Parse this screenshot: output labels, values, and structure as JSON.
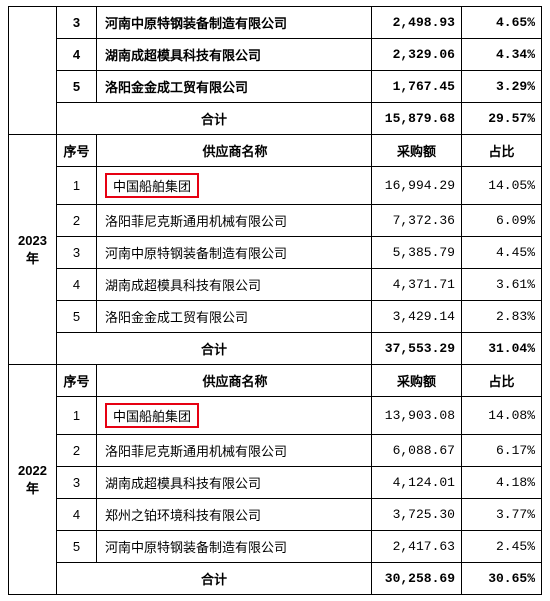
{
  "headers": {
    "seq": "序号",
    "supplier": "供应商名称",
    "amount": "采购额",
    "pct": "占比",
    "sum": "合计"
  },
  "topSection": {
    "rows": [
      {
        "seq": "3",
        "name": "河南中原特钢装备制造有限公司",
        "amount": "2,498.93",
        "pct": "4.65%"
      },
      {
        "seq": "4",
        "name": "湖南成超模具科技有限公司",
        "amount": "2,329.06",
        "pct": "4.34%"
      },
      {
        "seq": "5",
        "name": "洛阳金金成工贸有限公司",
        "amount": "1,767.45",
        "pct": "3.29%"
      }
    ],
    "sum": {
      "amount": "15,879.68",
      "pct": "29.57%"
    }
  },
  "sections": [
    {
      "year": "2023 年",
      "rows": [
        {
          "seq": "1",
          "name": "中国船舶集团",
          "amount": "16,994.29",
          "pct": "14.05%",
          "highlight": true
        },
        {
          "seq": "2",
          "name": "洛阳菲尼克斯通用机械有限公司",
          "amount": "7,372.36",
          "pct": "6.09%"
        },
        {
          "seq": "3",
          "name": "河南中原特钢装备制造有限公司",
          "amount": "5,385.79",
          "pct": "4.45%"
        },
        {
          "seq": "4",
          "name": "湖南成超模具科技有限公司",
          "amount": "4,371.71",
          "pct": "3.61%"
        },
        {
          "seq": "5",
          "name": "洛阳金金成工贸有限公司",
          "amount": "3,429.14",
          "pct": "2.83%"
        }
      ],
      "sum": {
        "amount": "37,553.29",
        "pct": "31.04%"
      }
    },
    {
      "year": "2022 年",
      "rows": [
        {
          "seq": "1",
          "name": "中国船舶集团",
          "amount": "13,903.08",
          "pct": "14.08%",
          "highlight": true
        },
        {
          "seq": "2",
          "name": "洛阳菲尼克斯通用机械有限公司",
          "amount": "6,088.67",
          "pct": "6.17%"
        },
        {
          "seq": "3",
          "name": "湖南成超模具科技有限公司",
          "amount": "4,124.01",
          "pct": "4.18%"
        },
        {
          "seq": "4",
          "name": "郑州之铂环境科技有限公司",
          "amount": "3,725.30",
          "pct": "3.77%"
        },
        {
          "seq": "5",
          "name": "河南中原特钢装备制造有限公司",
          "amount": "2,417.63",
          "pct": "2.45%"
        }
      ],
      "sum": {
        "amount": "30,258.69",
        "pct": "30.65%"
      }
    }
  ]
}
